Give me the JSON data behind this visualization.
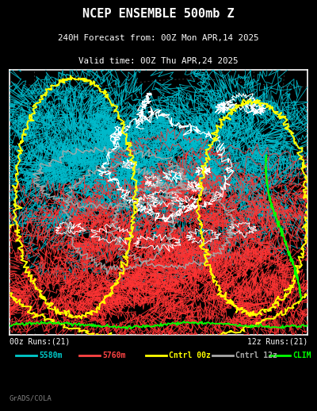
{
  "title_line1": "NCEP ENSEMBLE 500mb Z",
  "title_line2": "240H Forecast from: 00Z Mon APR,14 2025",
  "title_line3": "Valid time: 00Z Thu APR,24 2025",
  "background_color": "#000000",
  "border_color": "#ffffff",
  "title_color": "#ffffff",
  "label_color": "#ffffff",
  "footer_color": "#808080",
  "footer_text": "GrADS/COLA",
  "left_label": "00z Runs:(21)",
  "right_label": "12z Runs:(21)",
  "legend_items": [
    {
      "label": "5580m",
      "color": "#00cccc"
    },
    {
      "label": "5760m",
      "color": "#ff4444"
    },
    {
      "label": "Cntrl 00z",
      "color": "#ffff00"
    },
    {
      "label": "Cntrl 12z",
      "color": "#aaaaaa"
    },
    {
      "label": "CLIM",
      "color": "#00ff00"
    }
  ],
  "cyan_color": "#00bbcc",
  "red_color": "#ff3333",
  "yellow_color": "#ffff00",
  "gray_color": "#aaaaaa",
  "green_color": "#00ff00",
  "white_color": "#ffffff",
  "dotted_color": "#888888",
  "fig_width": 4.0,
  "fig_height": 5.18,
  "dpi": 100
}
